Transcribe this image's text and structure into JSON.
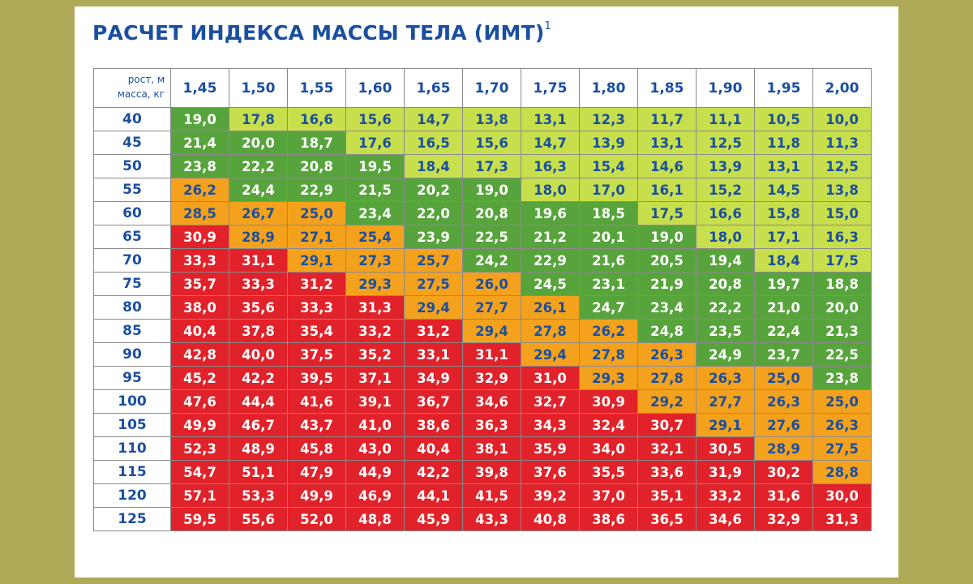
{
  "title": "РАСЧЕТ ИНДЕКСА МАССЫ ТЕЛА (ИМТ)",
  "title_footnote": "1",
  "corner": {
    "height_label": "рост, м",
    "weight_label": "масса, кг"
  },
  "colors": {
    "light_green": "#c8df4d",
    "green": "#58a43c",
    "orange": "#f4a21d",
    "red": "#e2222a",
    "text_blue": "#1a4fa0"
  },
  "heights": [
    "1,45",
    "1,50",
    "1,55",
    "1,60",
    "1,65",
    "1,70",
    "1,75",
    "1,80",
    "1,85",
    "1,90",
    "1,95",
    "2,00"
  ],
  "rows": [
    {
      "weight": "40",
      "values": [
        "19,0",
        "17,8",
        "16,6",
        "15,6",
        "14,7",
        "13,8",
        "13,1",
        "12,3",
        "11,7",
        "11,1",
        "10,5",
        "10,0"
      ],
      "cats": [
        "g",
        "ly",
        "ly",
        "ly",
        "ly",
        "ly",
        "ly",
        "ly",
        "ly",
        "ly",
        "ly",
        "ly"
      ]
    },
    {
      "weight": "45",
      "values": [
        "21,4",
        "20,0",
        "18,7",
        "17,6",
        "16,5",
        "15,6",
        "14,7",
        "13,9",
        "13,1",
        "12,5",
        "11,8",
        "11,3"
      ],
      "cats": [
        "g",
        "g",
        "g",
        "ly",
        "ly",
        "ly",
        "ly",
        "ly",
        "ly",
        "ly",
        "ly",
        "ly"
      ]
    },
    {
      "weight": "50",
      "values": [
        "23,8",
        "22,2",
        "20,8",
        "19,5",
        "18,4",
        "17,3",
        "16,3",
        "15,4",
        "14,6",
        "13,9",
        "13,1",
        "12,5"
      ],
      "cats": [
        "g",
        "g",
        "g",
        "g",
        "ly",
        "ly",
        "ly",
        "ly",
        "ly",
        "ly",
        "ly",
        "ly"
      ]
    },
    {
      "weight": "55",
      "values": [
        "26,2",
        "24,4",
        "22,9",
        "21,5",
        "20,2",
        "19,0",
        "18,0",
        "17,0",
        "16,1",
        "15,2",
        "14,5",
        "13,8"
      ],
      "cats": [
        "o",
        "g",
        "g",
        "g",
        "g",
        "g",
        "ly",
        "ly",
        "ly",
        "ly",
        "ly",
        "ly"
      ]
    },
    {
      "weight": "60",
      "values": [
        "28,5",
        "26,7",
        "25,0",
        "23,4",
        "22,0",
        "20,8",
        "19,6",
        "18,5",
        "17,5",
        "16,6",
        "15,8",
        "15,0"
      ],
      "cats": [
        "o",
        "o",
        "o",
        "g",
        "g",
        "g",
        "g",
        "g",
        "ly",
        "ly",
        "ly",
        "ly"
      ]
    },
    {
      "weight": "65",
      "values": [
        "30,9",
        "28,9",
        "27,1",
        "25,4",
        "23,9",
        "22,5",
        "21,2",
        "20,1",
        "19,0",
        "18,0",
        "17,1",
        "16,3"
      ],
      "cats": [
        "r",
        "o",
        "o",
        "o",
        "g",
        "g",
        "g",
        "g",
        "g",
        "ly",
        "ly",
        "ly"
      ]
    },
    {
      "weight": "70",
      "values": [
        "33,3",
        "31,1",
        "29,1",
        "27,3",
        "25,7",
        "24,2",
        "22,9",
        "21,6",
        "20,5",
        "19,4",
        "18,4",
        "17,5"
      ],
      "cats": [
        "r",
        "r",
        "o",
        "o",
        "o",
        "g",
        "g",
        "g",
        "g",
        "g",
        "ly",
        "ly"
      ]
    },
    {
      "weight": "75",
      "values": [
        "35,7",
        "33,3",
        "31,2",
        "29,3",
        "27,5",
        "26,0",
        "24,5",
        "23,1",
        "21,9",
        "20,8",
        "19,7",
        "18,8"
      ],
      "cats": [
        "r",
        "r",
        "r",
        "o",
        "o",
        "o",
        "g",
        "g",
        "g",
        "g",
        "g",
        "g"
      ]
    },
    {
      "weight": "80",
      "values": [
        "38,0",
        "35,6",
        "33,3",
        "31,3",
        "29,4",
        "27,7",
        "26,1",
        "24,7",
        "23,4",
        "22,2",
        "21,0",
        "20,0"
      ],
      "cats": [
        "r",
        "r",
        "r",
        "r",
        "o",
        "o",
        "o",
        "g",
        "g",
        "g",
        "g",
        "g"
      ]
    },
    {
      "weight": "85",
      "values": [
        "40,4",
        "37,8",
        "35,4",
        "33,2",
        "31,2",
        "29,4",
        "27,8",
        "26,2",
        "24,8",
        "23,5",
        "22,4",
        "21,3"
      ],
      "cats": [
        "r",
        "r",
        "r",
        "r",
        "r",
        "o",
        "o",
        "o",
        "g",
        "g",
        "g",
        "g"
      ]
    },
    {
      "weight": "90",
      "values": [
        "42,8",
        "40,0",
        "37,5",
        "35,2",
        "33,1",
        "31,1",
        "29,4",
        "27,8",
        "26,3",
        "24,9",
        "23,7",
        "22,5"
      ],
      "cats": [
        "r",
        "r",
        "r",
        "r",
        "r",
        "r",
        "o",
        "o",
        "o",
        "g",
        "g",
        "g"
      ]
    },
    {
      "weight": "95",
      "values": [
        "45,2",
        "42,2",
        "39,5",
        "37,1",
        "34,9",
        "32,9",
        "31,0",
        "29,3",
        "27,8",
        "26,3",
        "25,0",
        "23,8"
      ],
      "cats": [
        "r",
        "r",
        "r",
        "r",
        "r",
        "r",
        "r",
        "o",
        "o",
        "o",
        "o",
        "g"
      ]
    },
    {
      "weight": "100",
      "values": [
        "47,6",
        "44,4",
        "41,6",
        "39,1",
        "36,7",
        "34,6",
        "32,7",
        "30,9",
        "29,2",
        "27,7",
        "26,3",
        "25,0"
      ],
      "cats": [
        "r",
        "r",
        "r",
        "r",
        "r",
        "r",
        "r",
        "r",
        "o",
        "o",
        "o",
        "o"
      ]
    },
    {
      "weight": "105",
      "values": [
        "49,9",
        "46,7",
        "43,7",
        "41,0",
        "38,6",
        "36,3",
        "34,3",
        "32,4",
        "30,7",
        "29,1",
        "27,6",
        "26,3"
      ],
      "cats": [
        "r",
        "r",
        "r",
        "r",
        "r",
        "r",
        "r",
        "r",
        "r",
        "o",
        "o",
        "o"
      ]
    },
    {
      "weight": "110",
      "values": [
        "52,3",
        "48,9",
        "45,8",
        "43,0",
        "40,4",
        "38,1",
        "35,9",
        "34,0",
        "32,1",
        "30,5",
        "28,9",
        "27,5"
      ],
      "cats": [
        "r",
        "r",
        "r",
        "r",
        "r",
        "r",
        "r",
        "r",
        "r",
        "r",
        "o",
        "o"
      ]
    },
    {
      "weight": "115",
      "values": [
        "54,7",
        "51,1",
        "47,9",
        "44,9",
        "42,2",
        "39,8",
        "37,6",
        "35,5",
        "33,6",
        "31,9",
        "30,2",
        "28,8"
      ],
      "cats": [
        "r",
        "r",
        "r",
        "r",
        "r",
        "r",
        "r",
        "r",
        "r",
        "r",
        "r",
        "o"
      ]
    },
    {
      "weight": "120",
      "values": [
        "57,1",
        "53,3",
        "49,9",
        "46,9",
        "44,1",
        "41,5",
        "39,2",
        "37,0",
        "35,1",
        "33,2",
        "31,6",
        "30,0"
      ],
      "cats": [
        "r",
        "r",
        "r",
        "r",
        "r",
        "r",
        "r",
        "r",
        "r",
        "r",
        "r",
        "r"
      ]
    },
    {
      "weight": "125",
      "values": [
        "59,5",
        "55,6",
        "52,0",
        "48,8",
        "45,9",
        "43,3",
        "40,8",
        "38,6",
        "36,5",
        "34,6",
        "32,9",
        "31,3"
      ],
      "cats": [
        "r",
        "r",
        "r",
        "r",
        "r",
        "r",
        "r",
        "r",
        "r",
        "r",
        "r",
        "r"
      ]
    }
  ]
}
